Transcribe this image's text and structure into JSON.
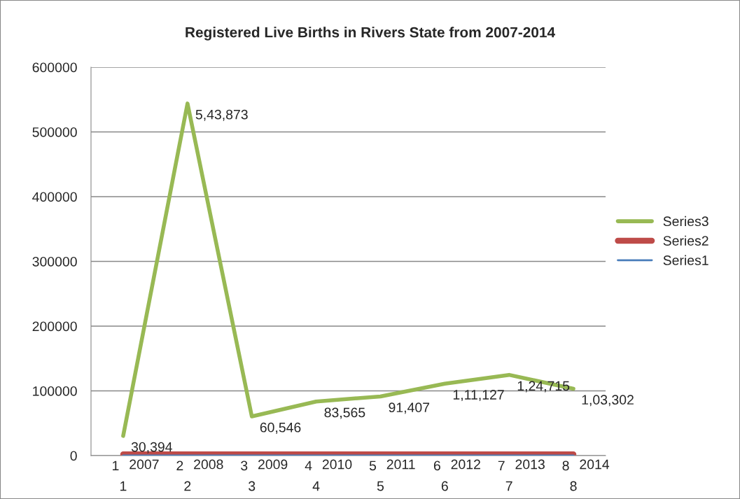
{
  "chart_data": {
    "type": "line",
    "title": "Registered Live Births in Rivers State from 2007-2014",
    "categories": [
      "1",
      "2",
      "3",
      "4",
      "5",
      "6",
      "7",
      "8"
    ],
    "series": [
      {
        "name": "Series1",
        "color": "#4a7ebb",
        "values": [
          1,
          2,
          3,
          4,
          5,
          6,
          7,
          8
        ],
        "value_labels": [
          "1",
          "2",
          "3",
          "4",
          "5",
          "6",
          "7",
          "8"
        ]
      },
      {
        "name": "Series2",
        "color": "#be4b48",
        "values": [
          2007,
          2008,
          2009,
          2010,
          2011,
          2012,
          2013,
          2014
        ],
        "value_labels": [
          "2007",
          "2008",
          "2009",
          "2010",
          "2011",
          "2012",
          "2013",
          "2014"
        ]
      },
      {
        "name": "Series3",
        "color": "#98b954",
        "values": [
          30394,
          543873,
          60546,
          83565,
          91407,
          111127,
          124715,
          103302
        ],
        "value_labels": [
          "30,394",
          "5,43,873",
          "60,546",
          "83,565",
          "91,407",
          "1,11,127",
          "1,24,715",
          "1,03,302"
        ]
      }
    ],
    "ylim": [
      0,
      600000
    ],
    "yticks": [
      0,
      100000,
      200000,
      300000,
      400000,
      500000,
      600000
    ],
    "grid": "y",
    "legend": "right",
    "marker": "none",
    "line_style": "solid"
  }
}
